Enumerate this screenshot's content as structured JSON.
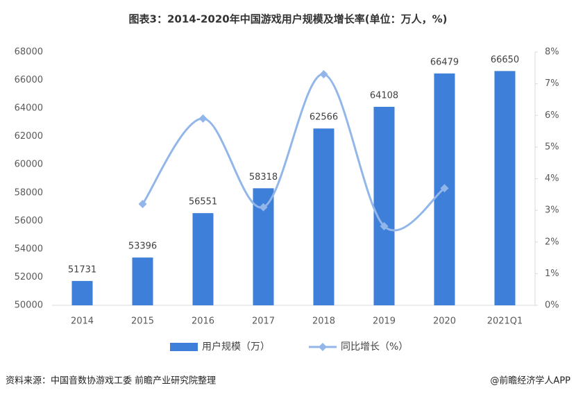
{
  "chart_data": {
    "type": "bar-line",
    "title": "图表3：2014-2020年中国游戏用户规模及增长率(单位：万人，%)",
    "categories": [
      "2014",
      "2015",
      "2016",
      "2017",
      "2018",
      "2019",
      "2020",
      "2021Q1"
    ],
    "series": [
      {
        "name": "用户规模（万）",
        "type": "bar",
        "color": "#3d7fd9",
        "values": [
          51731,
          53396,
          56551,
          58318,
          62566,
          64108,
          66479,
          66650
        ]
      },
      {
        "name": "同比增长（%）",
        "type": "line",
        "axis": "y2",
        "color": "#92b6ea",
        "values": [
          null,
          3.2,
          5.9,
          3.1,
          7.3,
          2.5,
          3.7,
          null
        ]
      }
    ],
    "ylim": [
      50000,
      68000
    ],
    "yticks": [
      50000,
      52000,
      54000,
      56000,
      58000,
      60000,
      62000,
      64000,
      66000,
      68000
    ],
    "y2lim": [
      0,
      8
    ],
    "y2ticks": [
      {
        "value": 0,
        "label": "0%"
      },
      {
        "value": 1,
        "label": "1%"
      },
      {
        "value": 2,
        "label": "2%"
      },
      {
        "value": 3,
        "label": "3%"
      },
      {
        "value": 4,
        "label": "4%"
      },
      {
        "value": 5,
        "label": "5%"
      },
      {
        "value": 6,
        "label": "6%"
      },
      {
        "value": 7,
        "label": "7%"
      },
      {
        "value": 8,
        "label": "8%"
      }
    ],
    "source": "资料来源：中国音数协游戏工委 前瞻产业研究院整理",
    "credit": "@前瞻经济学人APP"
  }
}
